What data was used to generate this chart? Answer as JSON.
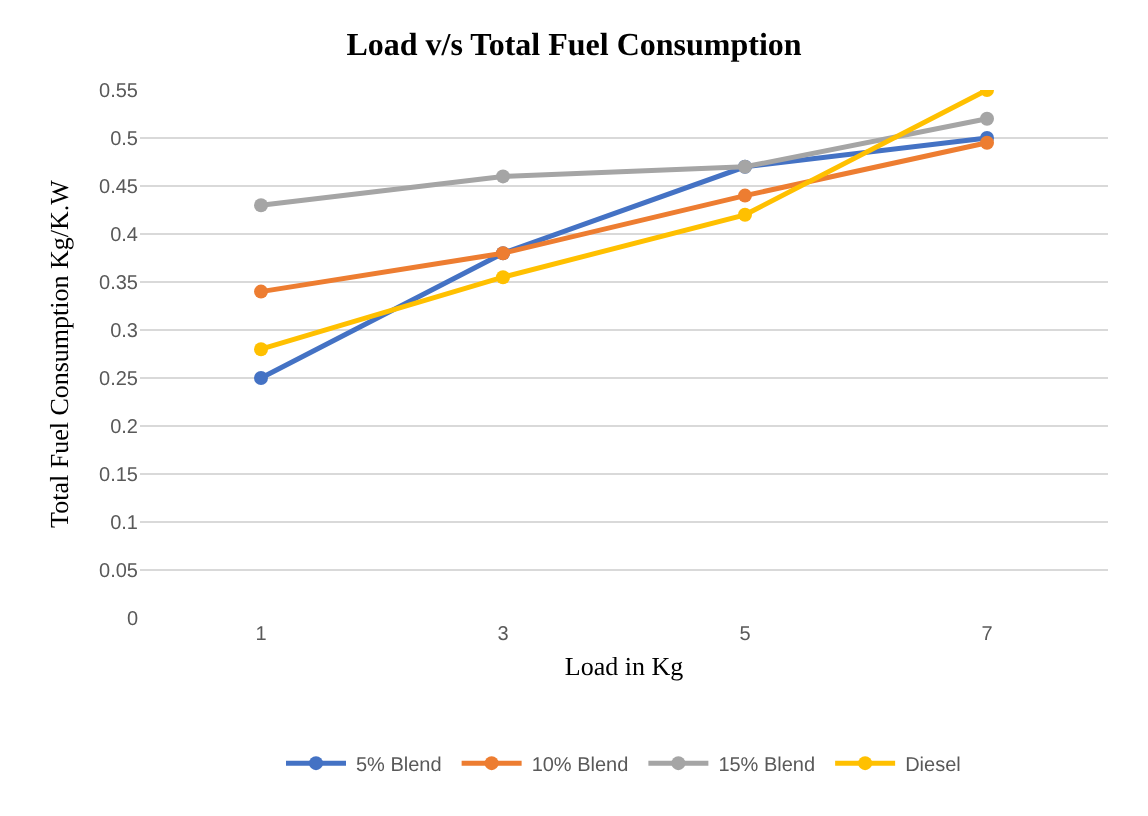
{
  "chart_data": {
    "type": "line",
    "title": "Load v/s Total Fuel Consumption",
    "xlabel": "Load in Kg",
    "ylabel": "Total Fuel Consumption Kg/K.W",
    "categories": [
      "1",
      "3",
      "5",
      "7"
    ],
    "series": [
      {
        "name": "5% Blend",
        "color": "#4472c4",
        "values": [
          0.25,
          0.38,
          0.47,
          0.5
        ]
      },
      {
        "name": "10% Blend",
        "color": "#ed7d31",
        "values": [
          0.34,
          0.38,
          0.44,
          0.495
        ]
      },
      {
        "name": "15% Blend",
        "color": "#a5a5a5",
        "values": [
          0.43,
          0.46,
          0.47,
          0.52
        ]
      },
      {
        "name": "Diesel",
        "color": "#ffc000",
        "values": [
          0.28,
          0.355,
          0.42,
          0.55
        ]
      }
    ],
    "ylim": [
      0,
      0.55
    ],
    "yticks": [
      0,
      0.05,
      0.1,
      0.15,
      0.2,
      0.25,
      0.3,
      0.35,
      0.4,
      0.45,
      0.5,
      0.55
    ],
    "grid": "y",
    "legend": "bottom",
    "marker": "circle",
    "line_style": "solid"
  }
}
